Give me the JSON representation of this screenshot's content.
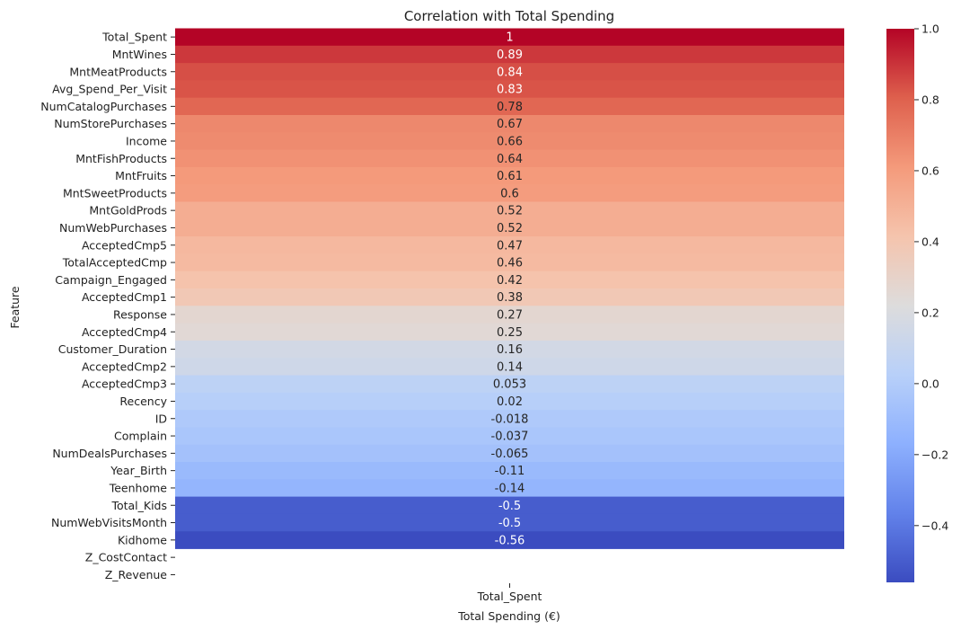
{
  "chart_data": {
    "type": "heatmap",
    "title": "Correlation with Total Spending",
    "xlabel": "Total Spending (€)",
    "ylabel": "Feature",
    "columns": [
      "Total_Spent"
    ],
    "rows": [
      {
        "label": "Total_Spent",
        "value": 1,
        "text": "1"
      },
      {
        "label": "MntWines",
        "value": 0.89,
        "text": "0.89"
      },
      {
        "label": "MntMeatProducts",
        "value": 0.84,
        "text": "0.84"
      },
      {
        "label": "Avg_Spend_Per_Visit",
        "value": 0.83,
        "text": "0.83"
      },
      {
        "label": "NumCatalogPurchases",
        "value": 0.78,
        "text": "0.78"
      },
      {
        "label": "NumStorePurchases",
        "value": 0.67,
        "text": "0.67"
      },
      {
        "label": "Income",
        "value": 0.66,
        "text": "0.66"
      },
      {
        "label": "MntFishProducts",
        "value": 0.64,
        "text": "0.64"
      },
      {
        "label": "MntFruits",
        "value": 0.61,
        "text": "0.61"
      },
      {
        "label": "MntSweetProducts",
        "value": 0.6,
        "text": "0.6"
      },
      {
        "label": "MntGoldProds",
        "value": 0.52,
        "text": "0.52"
      },
      {
        "label": "NumWebPurchases",
        "value": 0.52,
        "text": "0.52"
      },
      {
        "label": "AcceptedCmp5",
        "value": 0.47,
        "text": "0.47"
      },
      {
        "label": "TotalAcceptedCmp",
        "value": 0.46,
        "text": "0.46"
      },
      {
        "label": "Campaign_Engaged",
        "value": 0.42,
        "text": "0.42"
      },
      {
        "label": "AcceptedCmp1",
        "value": 0.38,
        "text": "0.38"
      },
      {
        "label": "Response",
        "value": 0.27,
        "text": "0.27"
      },
      {
        "label": "AcceptedCmp4",
        "value": 0.25,
        "text": "0.25"
      },
      {
        "label": "Customer_Duration",
        "value": 0.16,
        "text": "0.16"
      },
      {
        "label": "AcceptedCmp2",
        "value": 0.14,
        "text": "0.14"
      },
      {
        "label": "AcceptedCmp3",
        "value": 0.053,
        "text": "0.053"
      },
      {
        "label": "Recency",
        "value": 0.02,
        "text": "0.02"
      },
      {
        "label": "ID",
        "value": -0.018,
        "text": "-0.018"
      },
      {
        "label": "Complain",
        "value": -0.037,
        "text": "-0.037"
      },
      {
        "label": "NumDealsPurchases",
        "value": -0.065,
        "text": "-0.065"
      },
      {
        "label": "Year_Birth",
        "value": -0.11,
        "text": "-0.11"
      },
      {
        "label": "Teenhome",
        "value": -0.14,
        "text": "-0.14"
      },
      {
        "label": "Total_Kids",
        "value": -0.5,
        "text": "-0.5"
      },
      {
        "label": "NumWebVisitsMonth",
        "value": -0.5,
        "text": "-0.5"
      },
      {
        "label": "Kidhome",
        "value": -0.56,
        "text": "-0.56"
      },
      {
        "label": "Z_CostContact",
        "value": null,
        "text": ""
      },
      {
        "label": "Z_Revenue",
        "value": null,
        "text": ""
      }
    ],
    "colormap": "coolwarm",
    "colorbar": {
      "min": -0.56,
      "max": 1.0,
      "ticks": [
        1.0,
        0.8,
        0.6,
        0.4,
        0.2,
        0.0,
        -0.2,
        -0.4
      ],
      "tick_labels": [
        "1.0",
        "0.8",
        "0.6",
        "0.4",
        "0.2",
        "0.0",
        "−0.2",
        "−0.4"
      ]
    },
    "annotations": true,
    "grid": false
  }
}
